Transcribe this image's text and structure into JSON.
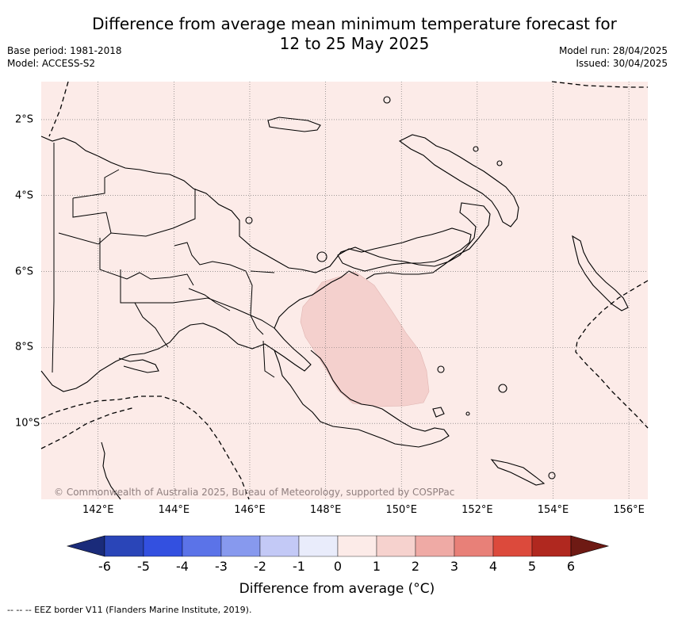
{
  "title_line1": "Difference from average mean minimum temperature forecast for",
  "title_line2": "12 to 25 May 2025",
  "meta_left": [
    "Base period: 1981-2018",
    "Model: ACCESS-S2"
  ],
  "meta_right": [
    "Model run: 28/04/2025",
    "Issued: 30/04/2025"
  ],
  "map": {
    "lon_range": [
      140.5,
      156.5
    ],
    "lat_range": [
      -12.0,
      -1.0
    ],
    "lon_ticks": [
      142,
      144,
      146,
      148,
      150,
      152,
      154,
      156
    ],
    "lat_ticks": [
      -2,
      -4,
      -6,
      -8,
      -10
    ],
    "lon_labels": [
      "142°E",
      "144°E",
      "146°E",
      "148°E",
      "150°E",
      "152°E",
      "154°E",
      "156°E"
    ],
    "lat_labels": [
      "2°S",
      "4°S",
      "6°S",
      "8°S",
      "10°S"
    ],
    "background_category": "0 to 1",
    "background_color": "#fcebe8",
    "anomaly_region_category": "1 to 2",
    "anomaly_region_color": "#f4d0cd",
    "copyright": "© Commonwealth of Australia 2025, Bureau of Meteorology, supported by COSPPac"
  },
  "colorbar": {
    "ticks": [
      "-6",
      "-5",
      "-4",
      "-3",
      "-2",
      "-1",
      "0",
      "1",
      "2",
      "3",
      "4",
      "5",
      "6"
    ],
    "colors": [
      "#1a2b7a",
      "#2a45b8",
      "#3350e0",
      "#5b73e8",
      "#8799ee",
      "#c3c9f6",
      "#e9ecfb",
      "#fcebe8",
      "#f6d2ce",
      "#efaaa5",
      "#e88078",
      "#dc4a3c",
      "#b0281f",
      "#6e1a14"
    ],
    "title": "Difference from average (°C)"
  },
  "footnote": "-- -- -- EEZ border V11 (Flanders Marine Institute, 2019)."
}
